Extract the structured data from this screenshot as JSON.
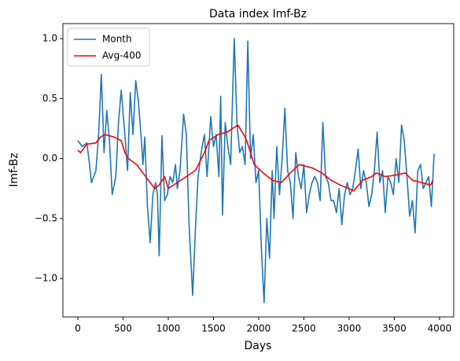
{
  "chart_data": {
    "type": "line",
    "title": "Data index Imf-Bz",
    "x_label": "Days",
    "y_label": "Imf-Bz",
    "xlim": [
      -165,
      4157
    ],
    "ylim": [
      -1.32,
      1.125
    ],
    "xticks": [
      0,
      500,
      1000,
      1500,
      2000,
      2500,
      3000,
      3500,
      4000
    ],
    "yticks": [
      {
        "value": -1,
        "label": "−1.0"
      },
      {
        "value": -0.5,
        "label": "−0.5"
      },
      {
        "value": 0,
        "label": "0.0"
      },
      0.5,
      {
        "value": 1,
        "label": "1.0"
      }
    ],
    "grid": false,
    "legend": "upper left",
    "series": [
      {
        "name": "Month",
        "color": "#1f77b4",
        "x": [
          0,
          50,
          100,
          130,
          150,
          200,
          230,
          260,
          290,
          320,
          350,
          380,
          420,
          450,
          480,
          520,
          550,
          580,
          610,
          640,
          670,
          700,
          720,
          740,
          770,
          800,
          830,
          860,
          880,
          900,
          930,
          960,
          990,
          1020,
          1050,
          1080,
          1100,
          1130,
          1170,
          1200,
          1230,
          1270,
          1300,
          1330,
          1370,
          1400,
          1430,
          1470,
          1500,
          1530,
          1560,
          1580,
          1600,
          1630,
          1660,
          1690,
          1730,
          1760,
          1790,
          1820,
          1850,
          1880,
          1910,
          1940,
          1970,
          2000,
          2030,
          2060,
          2090,
          2120,
          2150,
          2170,
          2200,
          2230,
          2260,
          2290,
          2320,
          2350,
          2380,
          2410,
          2440,
          2470,
          2500,
          2530,
          2560,
          2590,
          2620,
          2650,
          2680,
          2710,
          2740,
          2770,
          2800,
          2830,
          2860,
          2890,
          2920,
          2950,
          2980,
          3010,
          3040,
          3070,
          3100,
          3130,
          3160,
          3190,
          3220,
          3250,
          3280,
          3310,
          3340,
          3370,
          3400,
          3430,
          3460,
          3490,
          3520,
          3550,
          3580,
          3610,
          3640,
          3670,
          3700,
          3730,
          3760,
          3790,
          3820,
          3850,
          3880,
          3910,
          3940
        ],
        "values": [
          0.15,
          0.1,
          0.13,
          -0.05,
          -0.2,
          -0.1,
          0.2,
          0.7,
          0.05,
          0.4,
          0.15,
          -0.3,
          -0.15,
          0.3,
          0.57,
          0.2,
          -0.1,
          0.55,
          0.2,
          0.65,
          0.48,
          0.18,
          -0.05,
          0.18,
          -0.4,
          -0.7,
          -0.3,
          -0.2,
          -0.3,
          -0.81,
          0.19,
          -0.35,
          -0.3,
          -0.15,
          -0.2,
          -0.05,
          -0.25,
          -0.1,
          0.37,
          0.2,
          -0.55,
          -1.14,
          -0.6,
          -0.15,
          0.08,
          0.2,
          -0.15,
          0.35,
          0.1,
          0.2,
          -0.15,
          0.52,
          -0.47,
          0.3,
          0.1,
          -0.05,
          1.0,
          0.3,
          0.05,
          0.1,
          -0.05,
          0.98,
          0.0,
          0.2,
          -0.2,
          -0.1,
          -0.75,
          -1.2,
          -0.5,
          -0.83,
          -0.1,
          -0.5,
          0.1,
          -0.3,
          0.0,
          0.42,
          -0.1,
          -0.2,
          -0.5,
          0.05,
          -0.15,
          -0.25,
          -0.05,
          -0.45,
          -0.3,
          -0.2,
          -0.15,
          -0.2,
          -0.35,
          0.3,
          -0.15,
          -0.2,
          -0.35,
          -0.35,
          -0.45,
          -0.25,
          -0.55,
          -0.3,
          -0.2,
          -0.3,
          -0.25,
          -0.1,
          0.08,
          -0.25,
          -0.1,
          -0.2,
          -0.4,
          -0.3,
          -0.1,
          0.22,
          -0.2,
          -0.1,
          -0.45,
          -0.15,
          -0.2,
          -0.3,
          0.0,
          -0.2,
          0.28,
          0.15,
          -0.15,
          -0.48,
          -0.35,
          -0.62,
          -0.1,
          -0.05,
          -0.25,
          -0.2,
          -0.15,
          -0.4,
          0.04
        ]
      },
      {
        "name": "Avg-400",
        "color": "#ff0000",
        "x": [
          0,
          30,
          100,
          200,
          250,
          300,
          400,
          480,
          520,
          560,
          650,
          750,
          850,
          900,
          960,
          1000,
          1100,
          1200,
          1300,
          1400,
          1450,
          1550,
          1650,
          1770,
          1850,
          1890,
          1950,
          2050,
          2150,
          2250,
          2350,
          2450,
          2600,
          2700,
          2800,
          2900,
          3000,
          3050,
          3150,
          3250,
          3300,
          3400,
          3500,
          3620,
          3700,
          3800,
          3900,
          3930
        ],
        "values": [
          0.07,
          0.05,
          0.12,
          0.13,
          0.18,
          0.2,
          0.18,
          0.15,
          0.05,
          0.0,
          -0.05,
          -0.15,
          -0.25,
          -0.22,
          -0.15,
          -0.25,
          -0.2,
          -0.15,
          -0.1,
          0.05,
          0.15,
          0.2,
          0.22,
          0.28,
          0.18,
          0.1,
          -0.05,
          -0.12,
          -0.18,
          -0.2,
          -0.12,
          -0.05,
          -0.08,
          -0.12,
          -0.18,
          -0.22,
          -0.25,
          -0.27,
          -0.18,
          -0.15,
          -0.12,
          -0.15,
          -0.14,
          -0.12,
          -0.18,
          -0.2,
          -0.22,
          -0.18
        ]
      }
    ]
  }
}
